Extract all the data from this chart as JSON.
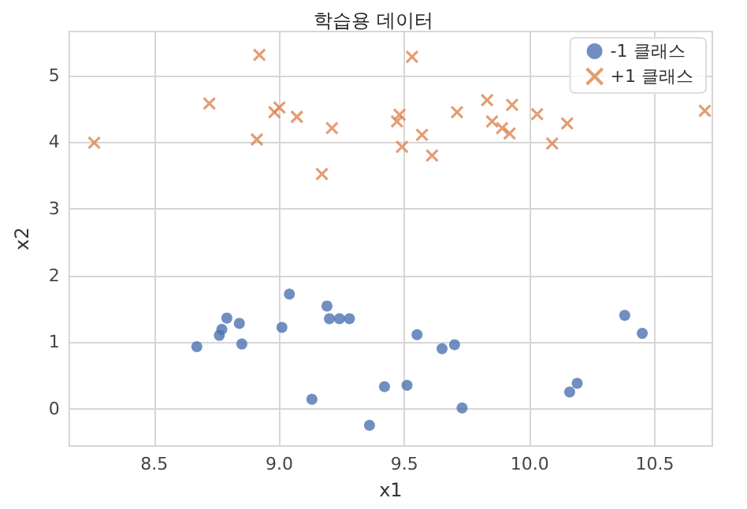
{
  "chart_data": {
    "type": "scatter",
    "title": "학습용 데이터",
    "xlabel": "x1",
    "ylabel": "x2",
    "xlim": [
      8.16,
      10.73
    ],
    "ylim": [
      -0.56,
      5.66
    ],
    "xticks": [
      {
        "value": 8.5,
        "label": "8.5"
      },
      {
        "value": 9,
        "label": "9.0"
      },
      {
        "value": 9.5,
        "label": "9.5"
      },
      {
        "value": 10,
        "label": "10.0"
      },
      {
        "value": 10.5,
        "label": "10.5"
      }
    ],
    "yticks": [
      0,
      1,
      2,
      3,
      4,
      5
    ],
    "grid": true,
    "legend": "top right",
    "series": [
      {
        "name": "-1 클래스",
        "color": "#4c72b0",
        "marker": "circle",
        "x": [
          8.67,
          8.76,
          8.77,
          8.79,
          8.84,
          8.85,
          9.01,
          9.04,
          9.19,
          9.2,
          9.24,
          9.28,
          9.13,
          9.36,
          9.42,
          9.51,
          9.55,
          9.65,
          9.7,
          9.73,
          10.16,
          10.19,
          10.38,
          10.45
        ],
        "values": [
          0.93,
          1.1,
          1.19,
          1.36,
          1.28,
          0.97,
          1.22,
          1.72,
          1.54,
          1.35,
          1.35,
          1.35,
          0.14,
          -0.25,
          0.33,
          0.35,
          1.11,
          0.9,
          0.96,
          0.01,
          0.25,
          0.38,
          1.4,
          1.13
        ]
      },
      {
        "name": "+1 클래스",
        "color": "#dd8452",
        "marker": "cross",
        "x": [
          8.26,
          8.72,
          8.92,
          8.91,
          8.98,
          9.0,
          9.07,
          9.17,
          9.21,
          9.48,
          9.47,
          9.49,
          9.53,
          9.57,
          9.61,
          9.71,
          9.83,
          9.85,
          9.89,
          9.92,
          9.93,
          10.03,
          10.09,
          10.15,
          10.7
        ],
        "values": [
          3.99,
          4.58,
          5.31,
          4.04,
          4.45,
          4.52,
          4.38,
          3.52,
          4.21,
          4.41,
          4.31,
          3.93,
          5.28,
          4.11,
          3.8,
          4.45,
          4.63,
          4.31,
          4.21,
          4.13,
          4.56,
          4.42,
          3.98,
          4.28,
          4.47
        ]
      }
    ]
  }
}
